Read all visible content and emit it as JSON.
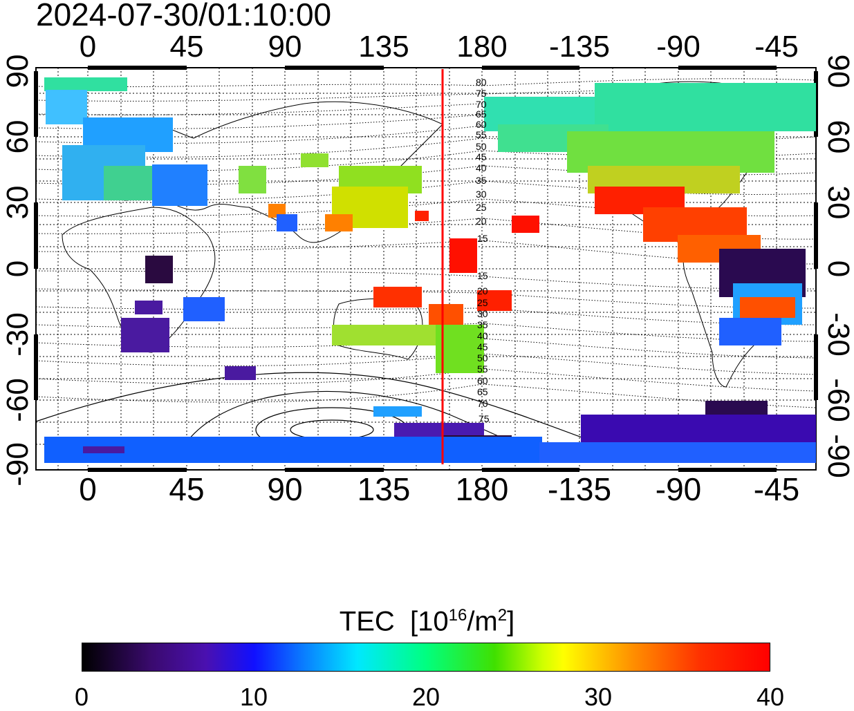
{
  "title": "2024-07-30/01:10:00",
  "x_ticks_top": [
    "0",
    "45",
    "90",
    "135",
    "180",
    "-135",
    "-90",
    "-45"
  ],
  "x_ticks_bottom": [
    "0",
    "45",
    "90",
    "135",
    "180",
    "-135",
    "-90",
    "-45"
  ],
  "y_ticks_left": [
    "90",
    "60",
    "30",
    "0",
    "-30",
    "-60",
    "-90"
  ],
  "y_ticks_right": [
    "90",
    "60",
    "30",
    "0",
    "-30",
    "-60",
    "-90"
  ],
  "contour_labels": [
    "80",
    "75",
    "70",
    "65",
    "60",
    "55",
    "50",
    "45",
    "40",
    "35",
    "30",
    "25",
    "20",
    "15",
    "15",
    "20",
    "25",
    "30",
    "35",
    "40",
    "45",
    "50",
    "55",
    "60",
    "65",
    "70",
    "75"
  ],
  "colorbar": {
    "label": "TEC",
    "unit_prefix": "[10",
    "unit_exp": "16",
    "unit_mid": "/m",
    "unit_exp2": "2",
    "unit_suffix": "]",
    "ticks": [
      "0",
      "10",
      "20",
      "30",
      "40"
    ],
    "range": [
      0,
      40
    ]
  },
  "colors": {
    "marker_line": "#ff0000",
    "high": "#ff0000",
    "low": "#2a0050"
  },
  "map": {
    "projection": "equirectangular",
    "lon_range": [
      -20,
      340
    ],
    "lat_range": [
      -90,
      90
    ],
    "marker_longitude": 163,
    "grid": true
  }
}
